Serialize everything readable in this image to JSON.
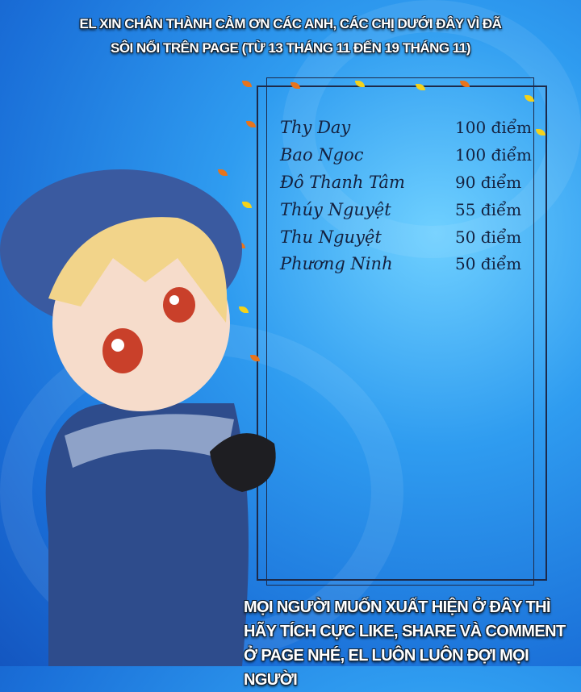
{
  "header": {
    "line1": "EL XIN CHÂN THÀNH CẢM ƠN CÁC ANH, CÁC CHỊ DƯỚI ĐÂY VÌ ĐÃ",
    "line2": "SÔI NỔI TRÊN PAGE  (TỪ 13 THÁNG 11 ĐẾN 19 THÁNG 11)"
  },
  "ranking": [
    {
      "name": "Thy Day",
      "score": "100 điểm"
    },
    {
      "name": "Bao Ngoc",
      "score": "100 điểm"
    },
    {
      "name": "Đô Thanh Tâm",
      "score": "90 điểm"
    },
    {
      "name": "Thúy Nguyệt",
      "score": "55 điểm"
    },
    {
      "name": "Thu Nguyệt",
      "score": "50 điểm"
    },
    {
      "name": "Phương Ninh",
      "score": "50 điểm"
    }
  ],
  "footer": {
    "text": "MỌI NGƯỜI MUỐN XUẤT HIỆN Ở ĐÂY THÌ HÃY TÍCH CỰC LIKE, SHARE VÀ COMMENT Ở PAGE NHÉ, EL LUÔN LUÔN ĐỢI MỌI NGƯỜI"
  },
  "colors": {
    "background": "#2f9cf0",
    "text": "#14213f",
    "leaf_orange": "#e8741c",
    "leaf_yellow": "#f4d21a"
  }
}
